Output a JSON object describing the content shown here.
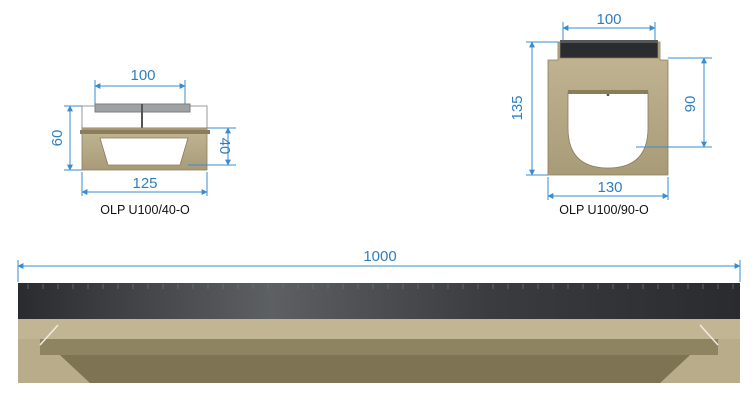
{
  "drawings": {
    "left": {
      "top_width": "100",
      "height_total": "60",
      "height_channel": "40",
      "bottom_width": "125",
      "caption": "OLP U100/40-O"
    },
    "right": {
      "top_width": "100",
      "height_total": "135",
      "height_channel": "90",
      "bottom_width": "130",
      "caption": "OLP U100/90-O"
    },
    "side": {
      "length": "1000"
    }
  },
  "colors": {
    "concrete": "#b4a888",
    "concrete_dark": "#8b7d5a",
    "grate": "#2f3134",
    "dimension_line": "#3a8ccf",
    "dimension_text": "#2e7fc0"
  }
}
